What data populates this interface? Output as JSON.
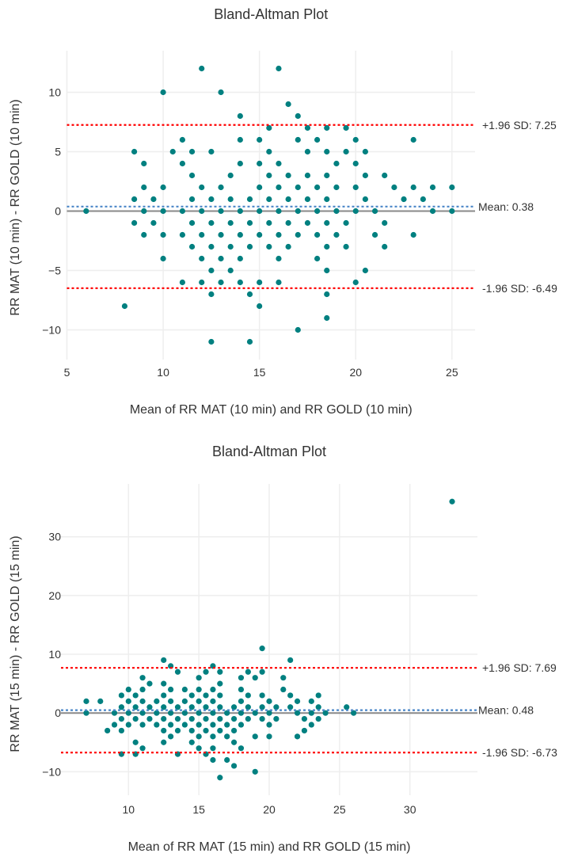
{
  "colors": {
    "point": "#008080",
    "sd_line": "#ff0000",
    "mean_line": "#4a86c8",
    "zero_line": "#888888",
    "grid": "#eeeeee",
    "text": "#333333"
  },
  "chart_data": [
    {
      "type": "scatter",
      "title": "Bland-Altman Plot",
      "xlabel": "Mean of RR MAT (10 min) and RR GOLD (10 min)",
      "ylabel": "RR MAT (10 min) - RR GOLD (10 min)",
      "xlim": [
        5,
        26.2
      ],
      "ylim": [
        -12.5,
        13.5
      ],
      "grid": true,
      "x_ticks": [
        5,
        10,
        15,
        20,
        25
      ],
      "x_tick_labels": [
        "5",
        "10",
        "15",
        "20",
        "25"
      ],
      "y_ticks": [
        10,
        5,
        0,
        -5,
        -10
      ],
      "y_tick_labels": [
        "10",
        "5",
        "0",
        "−5",
        "−10"
      ],
      "mean": 0.38,
      "upper_loa": 7.25,
      "lower_loa": -6.49,
      "mean_label": "Mean: 0.38",
      "upper_label": "+1.96 SD: 7.25",
      "lower_label": "-1.96 SD: -6.49",
      "points": [
        [
          6,
          0
        ],
        [
          8,
          -8
        ],
        [
          8.5,
          5
        ],
        [
          8.5,
          1
        ],
        [
          8.5,
          -1
        ],
        [
          9,
          4
        ],
        [
          9,
          2
        ],
        [
          9,
          0
        ],
        [
          9,
          -2
        ],
        [
          9.5,
          1
        ],
        [
          9.5,
          -1
        ],
        [
          10,
          10
        ],
        [
          10,
          2
        ],
        [
          10,
          0
        ],
        [
          10,
          -2
        ],
        [
          10,
          -4
        ],
        [
          10.5,
          5
        ],
        [
          11,
          6
        ],
        [
          11,
          4
        ],
        [
          11,
          0
        ],
        [
          11,
          -2
        ],
        [
          11,
          -6
        ],
        [
          11.5,
          5
        ],
        [
          11.5,
          3
        ],
        [
          11.5,
          1
        ],
        [
          11.5,
          -1
        ],
        [
          11.5,
          -3
        ],
        [
          12,
          12
        ],
        [
          12,
          2
        ],
        [
          12,
          0
        ],
        [
          12,
          -2
        ],
        [
          12,
          -4
        ],
        [
          12,
          -6
        ],
        [
          12.5,
          5
        ],
        [
          12.5,
          1
        ],
        [
          12.5,
          -1
        ],
        [
          12.5,
          -3
        ],
        [
          12.5,
          -5
        ],
        [
          12.5,
          -7
        ],
        [
          12.5,
          -11
        ],
        [
          13,
          10
        ],
        [
          13,
          2
        ],
        [
          13,
          0
        ],
        [
          13,
          -2
        ],
        [
          13,
          -4
        ],
        [
          13,
          -6
        ],
        [
          13.5,
          3
        ],
        [
          13.5,
          1
        ],
        [
          13.5,
          -1
        ],
        [
          13.5,
          -3
        ],
        [
          13.5,
          -5
        ],
        [
          14,
          8
        ],
        [
          14,
          6
        ],
        [
          14,
          4
        ],
        [
          14,
          0
        ],
        [
          14,
          -2
        ],
        [
          14,
          -4
        ],
        [
          14,
          -6
        ],
        [
          14.5,
          1
        ],
        [
          14.5,
          -1
        ],
        [
          14.5,
          -3
        ],
        [
          14.5,
          -7
        ],
        [
          14.5,
          -11
        ],
        [
          15,
          6
        ],
        [
          15,
          4
        ],
        [
          15,
          2
        ],
        [
          15,
          0
        ],
        [
          15,
          -2
        ],
        [
          15,
          -6
        ],
        [
          15,
          -8
        ],
        [
          15.5,
          7
        ],
        [
          15.5,
          5
        ],
        [
          15.5,
          3
        ],
        [
          15.5,
          1
        ],
        [
          15.5,
          -1
        ],
        [
          15.5,
          -3
        ],
        [
          16,
          12
        ],
        [
          16,
          4
        ],
        [
          16,
          2
        ],
        [
          16,
          0
        ],
        [
          16,
          -2
        ],
        [
          16,
          -4
        ],
        [
          16,
          -6
        ],
        [
          16.5,
          9
        ],
        [
          16.5,
          3
        ],
        [
          16.5,
          1
        ],
        [
          16.5,
          -1
        ],
        [
          16.5,
          -3
        ],
        [
          17,
          8
        ],
        [
          17,
          6
        ],
        [
          17,
          2
        ],
        [
          17,
          0
        ],
        [
          17,
          -2
        ],
        [
          17,
          -10
        ],
        [
          17.5,
          7
        ],
        [
          17.5,
          5
        ],
        [
          17.5,
          3
        ],
        [
          17.5,
          1
        ],
        [
          17.5,
          -1
        ],
        [
          18,
          6
        ],
        [
          18,
          2
        ],
        [
          18,
          0
        ],
        [
          18,
          -2
        ],
        [
          18,
          -4
        ],
        [
          18.5,
          7
        ],
        [
          18.5,
          5
        ],
        [
          18.5,
          3
        ],
        [
          18.5,
          1
        ],
        [
          18.5,
          -1
        ],
        [
          18.5,
          -3
        ],
        [
          18.5,
          -5
        ],
        [
          18.5,
          -7
        ],
        [
          18.5,
          -9
        ],
        [
          19,
          4
        ],
        [
          19,
          2
        ],
        [
          19,
          0
        ],
        [
          19,
          -2
        ],
        [
          19.5,
          7
        ],
        [
          19.5,
          5
        ],
        [
          19.5,
          -1
        ],
        [
          19.5,
          -3
        ],
        [
          20,
          6
        ],
        [
          20,
          4
        ],
        [
          20,
          2
        ],
        [
          20,
          0
        ],
        [
          20,
          -6
        ],
        [
          20.5,
          5
        ],
        [
          20.5,
          3
        ],
        [
          20.5,
          1
        ],
        [
          20.5,
          -5
        ],
        [
          21,
          0
        ],
        [
          21,
          -2
        ],
        [
          21.5,
          3
        ],
        [
          21.5,
          -1
        ],
        [
          21.5,
          -3
        ],
        [
          22,
          2
        ],
        [
          22.5,
          1
        ],
        [
          23,
          6
        ],
        [
          23,
          2
        ],
        [
          23,
          -2
        ],
        [
          23.5,
          1
        ],
        [
          24,
          2
        ],
        [
          24,
          0
        ],
        [
          25,
          2
        ],
        [
          25,
          0
        ]
      ]
    },
    {
      "type": "scatter",
      "title": "Bland-Altman Plot",
      "xlabel": "Mean of RR MAT (15 min) and RR GOLD (15 min)",
      "ylabel": "RR MAT (15 min) - RR GOLD (15 min)",
      "xlim": [
        5.2,
        34.8
      ],
      "ylim": [
        -14,
        39
      ],
      "grid": true,
      "x_ticks": [
        10,
        15,
        20,
        25,
        30
      ],
      "x_tick_labels": [
        "10",
        "15",
        "20",
        "25",
        "30"
      ],
      "y_ticks": [
        30,
        20,
        10,
        0,
        -10
      ],
      "y_tick_labels": [
        "30",
        "20",
        "10",
        "0",
        "−10"
      ],
      "mean": 0.48,
      "upper_loa": 7.69,
      "lower_loa": -6.73,
      "mean_label": "Mean: 0.48",
      "upper_label": "+1.96 SD: 7.69",
      "lower_label": "-1.96 SD: -6.73",
      "points": [
        [
          7,
          2
        ],
        [
          7,
          0
        ],
        [
          8,
          2
        ],
        [
          8.5,
          -3
        ],
        [
          9,
          0
        ],
        [
          9,
          -2
        ],
        [
          9.5,
          3
        ],
        [
          9.5,
          1
        ],
        [
          9.5,
          -1
        ],
        [
          9.5,
          -3
        ],
        [
          9.5,
          -7
        ],
        [
          10,
          4
        ],
        [
          10,
          2
        ],
        [
          10,
          0
        ],
        [
          10,
          -2
        ],
        [
          10.5,
          3
        ],
        [
          10.5,
          1
        ],
        [
          10.5,
          -1
        ],
        [
          10.5,
          -5
        ],
        [
          10.5,
          -7
        ],
        [
          11,
          6
        ],
        [
          11,
          4
        ],
        [
          11,
          2
        ],
        [
          11,
          0
        ],
        [
          11,
          -2
        ],
        [
          11,
          -6
        ],
        [
          11.5,
          5
        ],
        [
          11.5,
          1
        ],
        [
          11.5,
          -1
        ],
        [
          12,
          2
        ],
        [
          12,
          0
        ],
        [
          12,
          -2
        ],
        [
          12.5,
          9
        ],
        [
          12.5,
          5
        ],
        [
          12.5,
          3
        ],
        [
          12.5,
          1
        ],
        [
          12.5,
          -1
        ],
        [
          12.5,
          -3
        ],
        [
          12.5,
          -5
        ],
        [
          13,
          8
        ],
        [
          13,
          4
        ],
        [
          13,
          2
        ],
        [
          13,
          0
        ],
        [
          13,
          -2
        ],
        [
          13,
          -4
        ],
        [
          13.5,
          7
        ],
        [
          13.5,
          1
        ],
        [
          13.5,
          -1
        ],
        [
          13.5,
          -3
        ],
        [
          13.5,
          -7
        ],
        [
          14,
          4
        ],
        [
          14,
          2
        ],
        [
          14,
          0
        ],
        [
          14,
          -2
        ],
        [
          14.5,
          3
        ],
        [
          14.5,
          1
        ],
        [
          14.5,
          -1
        ],
        [
          14.5,
          -3
        ],
        [
          14.5,
          -5
        ],
        [
          15,
          6
        ],
        [
          15,
          4
        ],
        [
          15,
          2
        ],
        [
          15,
          0
        ],
        [
          15,
          -2
        ],
        [
          15,
          -4
        ],
        [
          15,
          -6
        ],
        [
          15.5,
          7
        ],
        [
          15.5,
          3
        ],
        [
          15.5,
          1
        ],
        [
          15.5,
          -1
        ],
        [
          15.5,
          -3
        ],
        [
          15.5,
          -7
        ],
        [
          16,
          8
        ],
        [
          16,
          4
        ],
        [
          16,
          2
        ],
        [
          16,
          0
        ],
        [
          16,
          -2
        ],
        [
          16,
          -4
        ],
        [
          16,
          -6
        ],
        [
          16,
          -8
        ],
        [
          16.5,
          7
        ],
        [
          16.5,
          5
        ],
        [
          16.5,
          3
        ],
        [
          16.5,
          1
        ],
        [
          16.5,
          -1
        ],
        [
          16.5,
          -3
        ],
        [
          16.5,
          -11
        ],
        [
          17,
          0
        ],
        [
          17,
          -2
        ],
        [
          17,
          -4
        ],
        [
          17,
          -8
        ],
        [
          17.5,
          1
        ],
        [
          17.5,
          -1
        ],
        [
          17.5,
          -3
        ],
        [
          17.5,
          -5
        ],
        [
          17.5,
          -9
        ],
        [
          18,
          6
        ],
        [
          18,
          4
        ],
        [
          18,
          2
        ],
        [
          18,
          0
        ],
        [
          18,
          -2
        ],
        [
          18,
          -6
        ],
        [
          18.5,
          7
        ],
        [
          18.5,
          3
        ],
        [
          18.5,
          1
        ],
        [
          18.5,
          -1
        ],
        [
          19,
          6
        ],
        [
          19,
          0
        ],
        [
          19,
          -4
        ],
        [
          19,
          -10
        ],
        [
          19.5,
          11
        ],
        [
          19.5,
          7
        ],
        [
          19.5,
          3
        ],
        [
          19.5,
          1
        ],
        [
          19.5,
          -1
        ],
        [
          20,
          2
        ],
        [
          20,
          0
        ],
        [
          20,
          -2
        ],
        [
          20,
          -4
        ],
        [
          20.5,
          1
        ],
        [
          20.5,
          -1
        ],
        [
          21,
          6
        ],
        [
          21,
          4
        ],
        [
          21.5,
          9
        ],
        [
          21.5,
          3
        ],
        [
          21.5,
          1
        ],
        [
          22,
          2
        ],
        [
          22,
          0
        ],
        [
          22,
          -4
        ],
        [
          22.5,
          -1
        ],
        [
          22.5,
          -3
        ],
        [
          23,
          2
        ],
        [
          23,
          0
        ],
        [
          23,
          -2
        ],
        [
          23.5,
          3
        ],
        [
          23.5,
          1
        ],
        [
          23.5,
          -1
        ],
        [
          24,
          0
        ],
        [
          25.5,
          1
        ],
        [
          26,
          0
        ],
        [
          33,
          36
        ]
      ]
    }
  ]
}
